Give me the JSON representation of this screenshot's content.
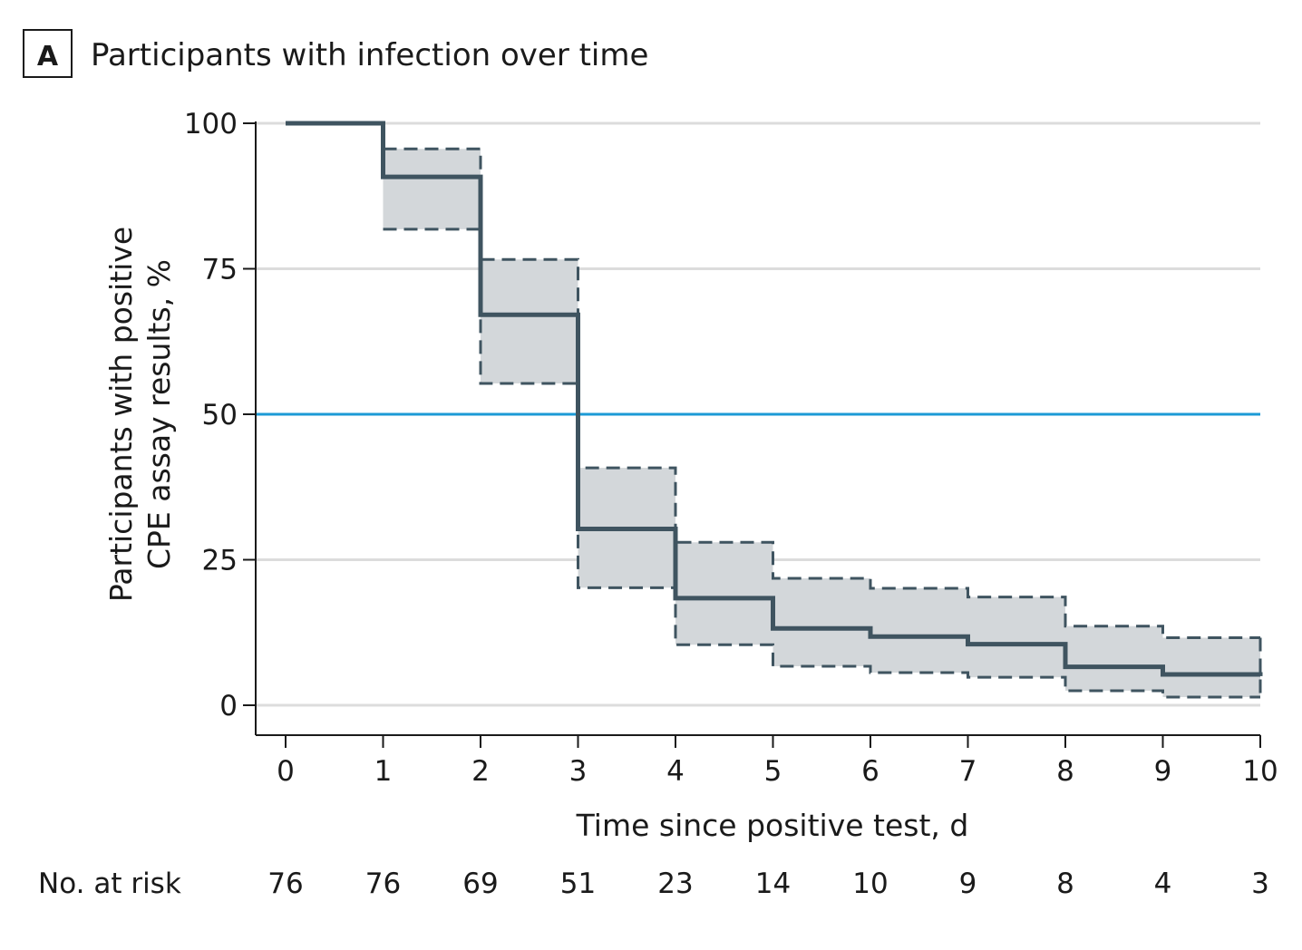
{
  "panel": {
    "letter": "A",
    "title": "Participants with infection over time"
  },
  "chart_data": {
    "type": "line",
    "subtype": "kaplan-meier step curve with confidence band",
    "xlabel": "Time since positive test, d",
    "ylabel_lines": [
      "Participants with positive",
      "CPE assay results, %"
    ],
    "xlim": [
      0,
      10
    ],
    "ylim": [
      0,
      100
    ],
    "x_ticks": [
      0,
      1,
      2,
      3,
      4,
      5,
      6,
      7,
      8,
      9,
      10
    ],
    "y_ticks": [
      0,
      25,
      50,
      75,
      100
    ],
    "grid": "horizontal",
    "reference_line": {
      "y": 50,
      "color": "#1b9ad6"
    },
    "colors": {
      "curve": "#3f5460",
      "band_fill": "#d3d7da",
      "band_stroke": "#3f5460",
      "grid": "#dcdcdc"
    },
    "series": {
      "x": [
        0,
        1,
        2,
        3,
        4,
        5,
        6,
        7,
        8,
        9,
        10
      ],
      "estimate": [
        100,
        90.8,
        67.1,
        30.3,
        18.4,
        13.2,
        11.8,
        10.5,
        6.6,
        5.3,
        5.0
      ],
      "ci_upper": [
        null,
        95.6,
        76.6,
        40.8,
        28.0,
        21.8,
        20.1,
        18.6,
        13.6,
        11.6,
        11.5
      ],
      "ci_lower": [
        null,
        81.8,
        55.3,
        20.2,
        10.4,
        6.7,
        5.6,
        4.8,
        2.5,
        1.4,
        1.2
      ]
    },
    "risk_table": {
      "label": "No. at risk",
      "times": [
        0,
        1,
        2,
        3,
        4,
        5,
        6,
        7,
        8,
        9,
        10
      ],
      "values": [
        "76",
        "76",
        "69",
        "51",
        "23",
        "14",
        "10",
        "9",
        "8",
        "4",
        "3"
      ]
    }
  }
}
